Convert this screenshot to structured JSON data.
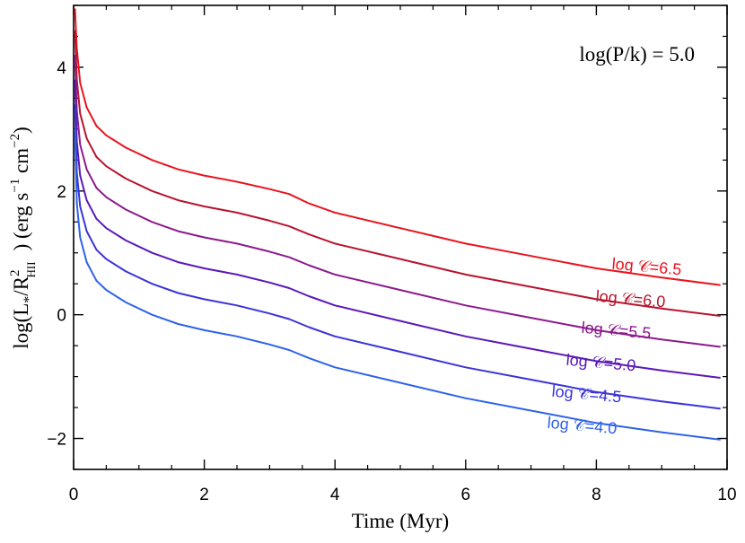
{
  "chart_data": {
    "type": "line",
    "annotation": "log(P/k) = 5.0",
    "xlabel": "Time (Myr)",
    "ylabel": {
      "prefix": "log(L",
      "star": "*",
      "slash": "/R",
      "sup2": "2",
      "subHII": "HII",
      "units_pre": ") (erg s",
      "sup_m1": "−1",
      "units_mid": " cm",
      "sup_m2": "−2",
      "units_post": ")"
    },
    "xlim": [
      0,
      10
    ],
    "ylim": [
      -2.5,
      5
    ],
    "xticks": [
      0,
      2,
      4,
      6,
      8,
      10
    ],
    "yticks": [
      -2,
      0,
      2,
      4
    ],
    "xtick_labels": [
      "0",
      "2",
      "4",
      "6",
      "8",
      "10"
    ],
    "ytick_labels": [
      "−2",
      "0",
      "2",
      "4"
    ],
    "series": [
      {
        "name": "log 𝒞=6.5",
        "color": "#e8141e",
        "x": [
          0.02,
          0.05,
          0.1,
          0.2,
          0.35,
          0.5,
          0.8,
          1.2,
          1.6,
          2.0,
          2.5,
          3.0,
          3.3,
          3.6,
          4.0,
          5.0,
          6.0,
          7.0,
          8.0,
          9.0,
          9.9
        ],
        "y": [
          4.95,
          4.3,
          3.75,
          3.35,
          3.05,
          2.9,
          2.7,
          2.5,
          2.35,
          2.25,
          2.15,
          2.03,
          1.95,
          1.8,
          1.65,
          1.4,
          1.15,
          0.95,
          0.75,
          0.6,
          0.48
        ]
      },
      {
        "name": "log 𝒞=6.0",
        "color": "#b8142e",
        "x": [
          0.02,
          0.05,
          0.1,
          0.2,
          0.35,
          0.5,
          0.8,
          1.2,
          1.6,
          2.0,
          2.5,
          3.0,
          3.3,
          3.6,
          4.0,
          5.0,
          6.0,
          7.0,
          8.0,
          9.0,
          9.9
        ],
        "y": [
          4.6,
          3.8,
          3.25,
          2.85,
          2.55,
          2.4,
          2.2,
          2.0,
          1.85,
          1.75,
          1.65,
          1.52,
          1.43,
          1.3,
          1.15,
          0.9,
          0.65,
          0.45,
          0.25,
          0.1,
          -0.02
        ]
      },
      {
        "name": "log 𝒞=5.5",
        "color": "#8c1a8c",
        "x": [
          0.02,
          0.05,
          0.1,
          0.2,
          0.35,
          0.5,
          0.8,
          1.2,
          1.6,
          2.0,
          2.5,
          3.0,
          3.3,
          3.6,
          4.0,
          5.0,
          6.0,
          7.0,
          8.0,
          9.0,
          9.9
        ],
        "y": [
          4.2,
          3.3,
          2.75,
          2.35,
          2.05,
          1.9,
          1.7,
          1.5,
          1.35,
          1.25,
          1.15,
          1.02,
          0.93,
          0.8,
          0.65,
          0.4,
          0.15,
          -0.05,
          -0.25,
          -0.4,
          -0.52
        ]
      },
      {
        "name": "log 𝒞=5.0",
        "color": "#5a18b8",
        "x": [
          0.02,
          0.05,
          0.1,
          0.2,
          0.35,
          0.5,
          0.8,
          1.2,
          1.6,
          2.0,
          2.5,
          3.0,
          3.3,
          3.6,
          4.0,
          5.0,
          6.0,
          7.0,
          8.0,
          9.0,
          9.9
        ],
        "y": [
          3.8,
          2.8,
          2.25,
          1.85,
          1.55,
          1.4,
          1.2,
          1.0,
          0.85,
          0.75,
          0.65,
          0.52,
          0.43,
          0.3,
          0.15,
          -0.1,
          -0.35,
          -0.55,
          -0.75,
          -0.9,
          -1.02
        ]
      },
      {
        "name": "log 𝒞=4.5",
        "color": "#3a34d8",
        "x": [
          0.02,
          0.05,
          0.1,
          0.2,
          0.35,
          0.5,
          0.8,
          1.2,
          1.6,
          2.0,
          2.5,
          3.0,
          3.3,
          3.6,
          4.0,
          5.0,
          6.0,
          7.0,
          8.0,
          9.0,
          9.9
        ],
        "y": [
          3.4,
          2.3,
          1.75,
          1.35,
          1.05,
          0.9,
          0.7,
          0.5,
          0.35,
          0.25,
          0.15,
          0.02,
          -0.07,
          -0.2,
          -0.35,
          -0.6,
          -0.85,
          -1.05,
          -1.25,
          -1.4,
          -1.52
        ]
      },
      {
        "name": "log 𝒞=4.0",
        "color": "#2f62e8",
        "x": [
          0.02,
          0.05,
          0.1,
          0.2,
          0.35,
          0.5,
          0.8,
          1.2,
          1.6,
          2.0,
          2.5,
          3.0,
          3.3,
          3.6,
          4.0,
          5.0,
          6.0,
          7.0,
          8.0,
          9.0,
          9.9
        ],
        "y": [
          3.0,
          1.8,
          1.25,
          0.85,
          0.55,
          0.4,
          0.2,
          0.0,
          -0.15,
          -0.25,
          -0.35,
          -0.48,
          -0.57,
          -0.7,
          -0.85,
          -1.1,
          -1.35,
          -1.55,
          -1.75,
          -1.9,
          -2.02
        ]
      }
    ]
  }
}
